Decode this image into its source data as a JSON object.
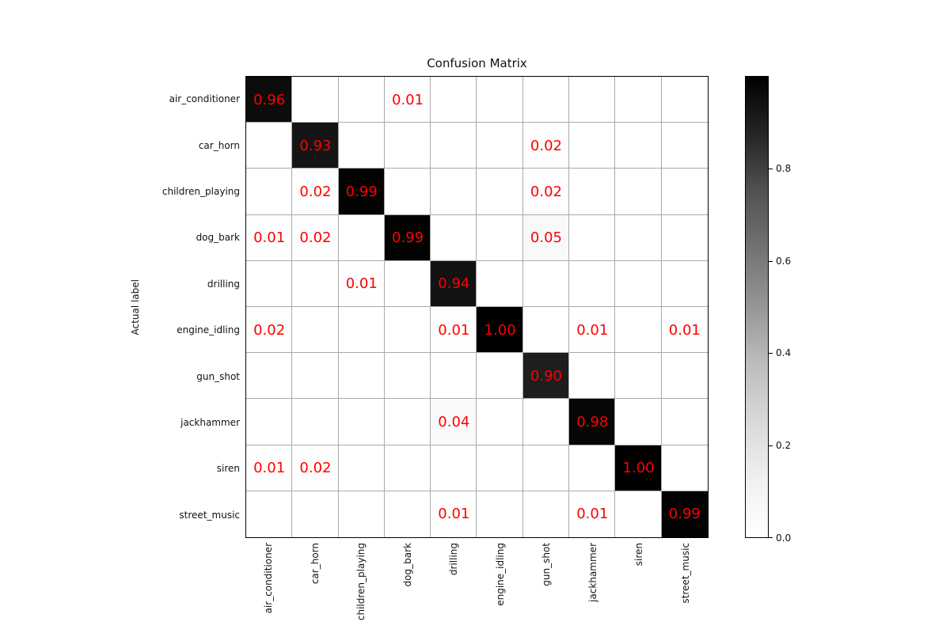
{
  "chart_data": {
    "type": "heatmap",
    "title": "Confusion Matrix",
    "xlabel": "",
    "ylabel": "Actual label",
    "classes": [
      "air_conditioner",
      "car_horn",
      "children_playing",
      "dog_bark",
      "drilling",
      "engine_idling",
      "gun_shot",
      "jackhammer",
      "siren",
      "street_music"
    ],
    "matrix": [
      [
        0.96,
        0,
        0,
        0.01,
        0,
        0,
        0,
        0,
        0,
        0
      ],
      [
        0,
        0.93,
        0,
        0,
        0,
        0,
        0.02,
        0,
        0,
        0
      ],
      [
        0,
        0.02,
        0.99,
        0,
        0,
        0,
        0.02,
        0,
        0,
        0
      ],
      [
        0.01,
        0.02,
        0,
        0.99,
        0,
        0,
        0.05,
        0,
        0,
        0
      ],
      [
        0,
        0,
        0.01,
        0,
        0.94,
        0,
        0,
        0,
        0,
        0
      ],
      [
        0.02,
        0,
        0,
        0,
        0.01,
        1.0,
        0,
        0.01,
        0,
        0.01
      ],
      [
        0,
        0,
        0,
        0,
        0,
        0,
        0.9,
        0,
        0,
        0
      ],
      [
        0,
        0,
        0,
        0,
        0.04,
        0,
        0,
        0.98,
        0,
        0
      ],
      [
        0.01,
        0.02,
        0,
        0,
        0,
        0,
        0,
        0,
        1.0,
        0
      ],
      [
        0,
        0,
        0,
        0,
        0.01,
        0,
        0,
        0.01,
        0,
        0.99
      ]
    ],
    "value_format_decimals": 2,
    "annotation_color": "#ff0000",
    "colormap": "Greys",
    "vmin": 0.0,
    "vmax": 1.0,
    "grid": true,
    "gridline_color": "#aaaaaa",
    "colorbar": {
      "position": "right",
      "tick_values": [
        0.0,
        0.2,
        0.4,
        0.6,
        0.8
      ],
      "tick_labels": [
        "0.0",
        "0.2",
        "0.4",
        "0.6",
        "0.8"
      ]
    }
  }
}
